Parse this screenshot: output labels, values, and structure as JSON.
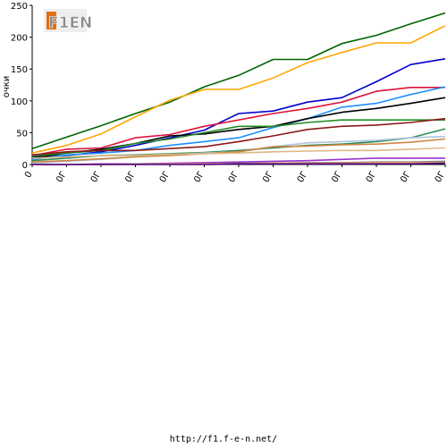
{
  "logo": {
    "text": "F1EN"
  },
  "footer_url": "http://f1.f-e-n.net/",
  "chart_data": {
    "type": "line",
    "ylabel": "очки",
    "ylim": [
      0,
      250
    ],
    "yticks": [
      0,
      50,
      100,
      150,
      200,
      250
    ],
    "x": [
      0,
      1,
      2,
      3,
      4,
      5,
      6,
      7,
      8,
      9,
      10,
      11,
      12
    ],
    "xtick_labels": [
      "0",
      "0Г",
      "0Г",
      "0Г",
      "0Г",
      "0Г",
      "0Г",
      "0Г",
      "0Г",
      "0Г",
      "0Г",
      "0Г",
      "0Г"
    ],
    "grid": false,
    "series": [
      {
        "color": "#006400",
        "values": [
          25,
          43,
          61,
          80,
          98,
          122,
          140,
          165,
          165,
          190,
          203,
          221,
          238
        ]
      },
      {
        "color": "#FFA500",
        "values": [
          18,
          30,
          48,
          75,
          101,
          118,
          118,
          136,
          160,
          176,
          191,
          191,
          218
        ]
      },
      {
        "color": "#0000CD",
        "values": [
          12,
          14,
          20,
          30,
          42,
          54,
          80,
          84,
          98,
          105,
          130,
          157,
          166
        ]
      },
      {
        "color": "#DC143C",
        "values": [
          14,
          24,
          26,
          42,
          47,
          60,
          70,
          80,
          88,
          98,
          115,
          121,
          121
        ]
      },
      {
        "color": "#1E90FF",
        "values": [
          8,
          15,
          18,
          22,
          30,
          36,
          42,
          58,
          72,
          90,
          96,
          110,
          122
        ]
      },
      {
        "color": "#000000",
        "values": [
          10,
          18,
          24,
          33,
          45,
          48,
          55,
          60,
          72,
          82,
          88,
          96,
          105
        ]
      },
      {
        "color": "#228B22",
        "values": [
          13,
          18,
          22,
          33,
          40,
          50,
          60,
          60,
          66,
          70,
          70,
          70,
          70
        ]
      },
      {
        "color": "#8B1A1A",
        "values": [
          15,
          20,
          22,
          22,
          25,
          28,
          36,
          45,
          55,
          60,
          62,
          66,
          72
        ]
      },
      {
        "color": "#2E8B57",
        "values": [
          6,
          10,
          14,
          15,
          17,
          19,
          22,
          26,
          30,
          32,
          36,
          42,
          56
        ]
      },
      {
        "color": "#B0C4DE",
        "values": [
          2,
          5,
          8,
          12,
          15,
          18,
          20,
          28,
          34,
          36,
          38,
          42,
          44
        ]
      },
      {
        "color": "#CD853F",
        "values": [
          4,
          6,
          9,
          12,
          14,
          17,
          20,
          28,
          29,
          31,
          32,
          35,
          40
        ]
      },
      {
        "color": "#DEB887",
        "values": [
          10,
          12,
          14,
          14,
          16,
          17,
          18,
          20,
          21,
          22,
          22,
          24,
          26
        ]
      },
      {
        "color": "#9932CC",
        "values": [
          0,
          0,
          1,
          1,
          2,
          3,
          4,
          5,
          6,
          8,
          10,
          10,
          10
        ]
      },
      {
        "color": "#808080",
        "values": [
          0,
          0,
          0,
          1,
          1,
          1,
          2,
          2,
          3,
          3,
          4,
          4,
          5
        ]
      },
      {
        "color": "#F4A460",
        "values": [
          0,
          0,
          0,
          0,
          1,
          1,
          1,
          2,
          2,
          2,
          3,
          3,
          3
        ]
      },
      {
        "color": "#4B0082",
        "values": [
          0,
          0,
          0,
          0,
          0,
          0,
          1,
          1,
          1,
          1,
          1,
          1,
          2
        ]
      }
    ]
  }
}
